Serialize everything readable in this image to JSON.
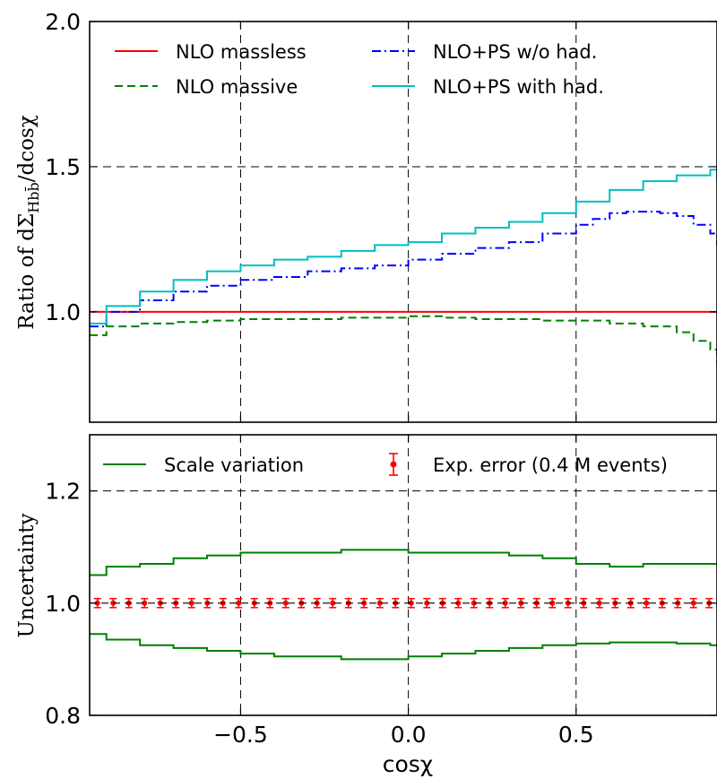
{
  "chart_data": [
    {
      "type": "line",
      "panel": "top",
      "xlim": [
        -0.95,
        0.92
      ],
      "ylim": [
        0.62,
        2.0
      ],
      "yticks": [
        1.0,
        1.5,
        2.0
      ],
      "ytick_labels": [
        "1.0",
        "1.5",
        "2.0"
      ],
      "ylabel_parts": {
        "prefix": "Ratio of dΣ",
        "subscript": "Hbb̄",
        "suffix": "/dcosχ"
      },
      "grid": {
        "x": [
          -0.5,
          0.0,
          0.5
        ],
        "y": [
          1.5
        ]
      },
      "legend": {
        "placement": "top",
        "columns": 2
      },
      "series": [
        {
          "name": "NLO massless",
          "color": "#ff0000",
          "style": "solid",
          "x": [
            -0.95,
            0.92
          ],
          "y": [
            1.0,
            1.0
          ]
        },
        {
          "name": "NLO massive",
          "color": "#008000",
          "style": "dashed",
          "x": [
            -0.95,
            -0.9,
            -0.8,
            -0.7,
            -0.6,
            -0.5,
            -0.4,
            -0.3,
            -0.2,
            -0.1,
            0.0,
            0.1,
            0.2,
            0.3,
            0.4,
            0.5,
            0.6,
            0.7,
            0.8,
            0.85,
            0.9,
            0.92
          ],
          "y": [
            0.92,
            0.95,
            0.96,
            0.965,
            0.97,
            0.975,
            0.975,
            0.975,
            0.98,
            0.98,
            0.985,
            0.98,
            0.975,
            0.975,
            0.97,
            0.97,
            0.96,
            0.95,
            0.93,
            0.9,
            0.87,
            0.82
          ]
        },
        {
          "name": "NLO+PS w/o had.",
          "color": "#0000ff",
          "style": "dashdot",
          "x": [
            -0.95,
            -0.9,
            -0.8,
            -0.7,
            -0.6,
            -0.5,
            -0.4,
            -0.3,
            -0.2,
            -0.1,
            0.0,
            0.1,
            0.2,
            0.3,
            0.4,
            0.5,
            0.55,
            0.6,
            0.65,
            0.7,
            0.75,
            0.8,
            0.85,
            0.9,
            0.92
          ],
          "y": [
            0.95,
            1.0,
            1.04,
            1.07,
            1.09,
            1.11,
            1.12,
            1.14,
            1.15,
            1.16,
            1.18,
            1.2,
            1.22,
            1.24,
            1.27,
            1.3,
            1.32,
            1.34,
            1.345,
            1.345,
            1.34,
            1.33,
            1.3,
            1.27,
            1.23
          ]
        },
        {
          "name": "NLO+PS with had.",
          "color": "#00bfbf",
          "style": "solid",
          "x": [
            -0.95,
            -0.9,
            -0.8,
            -0.7,
            -0.6,
            -0.5,
            -0.4,
            -0.3,
            -0.2,
            -0.1,
            0.0,
            0.1,
            0.2,
            0.3,
            0.4,
            0.5,
            0.6,
            0.7,
            0.8,
            0.9,
            0.92
          ],
          "y": [
            0.96,
            1.02,
            1.07,
            1.11,
            1.14,
            1.16,
            1.18,
            1.19,
            1.21,
            1.23,
            1.24,
            1.27,
            1.29,
            1.31,
            1.34,
            1.38,
            1.42,
            1.45,
            1.47,
            1.49,
            1.45
          ]
        }
      ]
    },
    {
      "type": "line",
      "panel": "bottom",
      "xlim": [
        -0.95,
        0.92
      ],
      "ylim": [
        0.8,
        1.3
      ],
      "xticks": [
        -0.5,
        0.0,
        0.5
      ],
      "xtick_labels": [
        "−0.5",
        "0.0",
        "0.5"
      ],
      "yticks": [
        0.8,
        1.0,
        1.2
      ],
      "ytick_labels": [
        "0.8",
        "1.0",
        "1.2"
      ],
      "ylabel": "Uncertainty",
      "xlabel": "cosχ",
      "grid": {
        "x": [
          -0.5,
          0.0,
          0.5
        ],
        "y": [
          1.2
        ]
      },
      "legend": {
        "placement": "top",
        "columns": 2
      },
      "series": [
        {
          "name": "Scale variation",
          "color": "#008000",
          "style": "solid",
          "x": [
            -0.95,
            -0.9,
            -0.8,
            -0.7,
            -0.6,
            -0.5,
            -0.4,
            -0.3,
            -0.2,
            -0.1,
            0.0,
            0.1,
            0.2,
            0.3,
            0.4,
            0.5,
            0.6,
            0.7,
            0.8,
            0.9,
            0.92
          ],
          "y": [
            1.05,
            1.065,
            1.07,
            1.08,
            1.085,
            1.09,
            1.09,
            1.09,
            1.095,
            1.095,
            1.09,
            1.09,
            1.09,
            1.085,
            1.08,
            1.07,
            1.065,
            1.07,
            1.07,
            1.07,
            1.07
          ]
        },
        {
          "name": "",
          "color": "#008000",
          "style": "solid",
          "x": [
            -0.95,
            -0.9,
            -0.8,
            -0.7,
            -0.6,
            -0.5,
            -0.4,
            -0.3,
            -0.2,
            -0.1,
            0.0,
            0.1,
            0.2,
            0.3,
            0.4,
            0.5,
            0.6,
            0.7,
            0.8,
            0.9,
            0.92
          ],
          "y": [
            0.945,
            0.935,
            0.925,
            0.92,
            0.915,
            0.91,
            0.905,
            0.905,
            0.9,
            0.9,
            0.905,
            0.91,
            0.915,
            0.92,
            0.925,
            0.928,
            0.93,
            0.93,
            0.928,
            0.925,
            0.925
          ]
        },
        {
          "name": "Exp. error (0.4 M events)",
          "color": "#ff0000",
          "type": "errorbar",
          "x_start": -0.95,
          "x_end": 0.92,
          "points": 40,
          "y": 1.0,
          "err": 0.008
        }
      ]
    }
  ]
}
